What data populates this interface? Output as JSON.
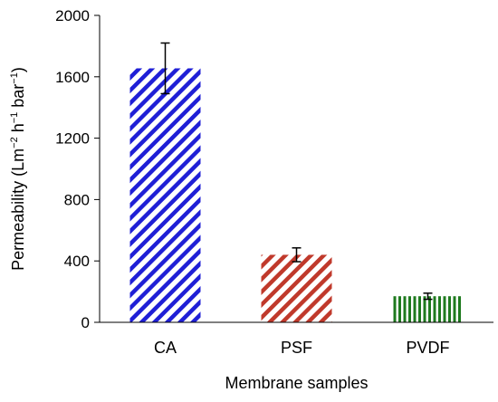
{
  "chart_data": {
    "type": "bar",
    "title": "",
    "xlabel": "Membrane samples",
    "ylabel": {
      "main": "Permeability  (Lm",
      "sup1": "−2",
      "mid1": " h",
      "sup2": "−1",
      "mid2": " bar",
      "sup3": "−1",
      "end": ")"
    },
    "categories": [
      "CA",
      "PSF",
      "PVDF"
    ],
    "values": [
      1655,
      440,
      170
    ],
    "errors": [
      165,
      45,
      20
    ],
    "colors": [
      "#1f1fd6",
      "#c0392b",
      "#1e7a1e"
    ],
    "patterns": [
      "diagonal",
      "diagonal",
      "vertical"
    ],
    "ylim": [
      0,
      2000
    ],
    "yticks": [
      0,
      400,
      800,
      1200,
      1600,
      2000
    ],
    "grid": false,
    "legend": "none"
  }
}
